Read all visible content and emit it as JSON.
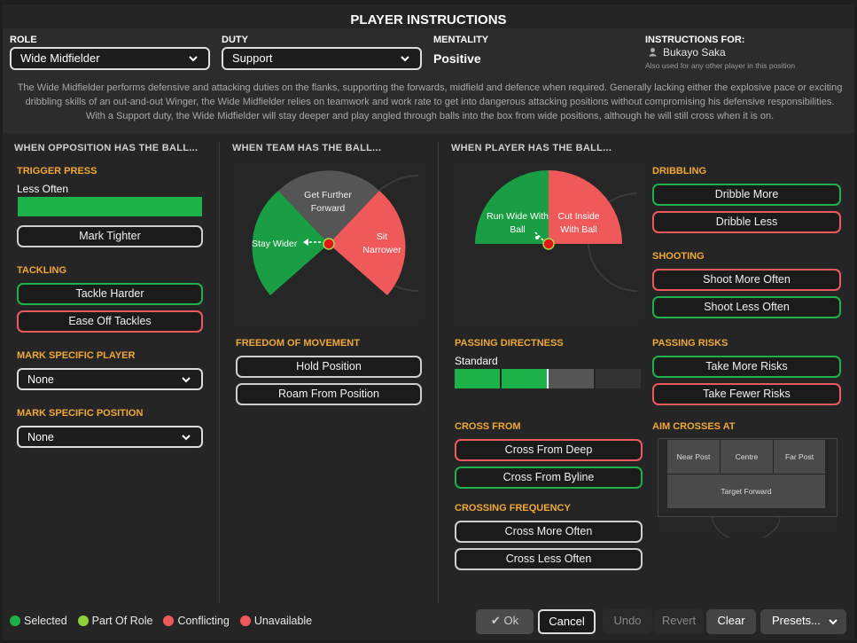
{
  "window": {
    "title": "PLAYER INSTRUCTIONS"
  },
  "role": {
    "label": "ROLE",
    "value": "Wide Midfielder"
  },
  "duty": {
    "label": "DUTY",
    "value": "Support"
  },
  "mentality": {
    "label": "MENTALITY",
    "value": "Positive"
  },
  "instructions_for": {
    "label": "INSTRUCTIONS FOR:",
    "player": "Bukayo Saka",
    "note": "Also used for any other player in this position"
  },
  "description": "The Wide Midfielder performs defensive and attacking duties on the flanks, supporting the forwards, midfield and defence when required. Generally lacking either the explosive pace or exciting dribbling skills of an out-and-out Winger, the Wide Midfielder relies on teamwork and work rate to get into dangerous attacking positions without compromising his defensive responsibilities. With a Support duty, the Wide Midfielder will stay deeper and play angled through balls into the box from wide positions, although he will still cross when it is on.",
  "opposition": {
    "heading": "WHEN OPPOSITION HAS THE BALL...",
    "trigger_press": {
      "label": "TRIGGER PRESS",
      "value": "Less Often"
    },
    "mark_tighter": "Mark Tighter",
    "tackling": {
      "label": "TACKLING",
      "harder": "Tackle Harder",
      "ease": "Ease Off Tackles"
    },
    "mark_player": {
      "label": "MARK SPECIFIC PLAYER",
      "value": "None"
    },
    "mark_position": {
      "label": "MARK SPECIFIC POSITION",
      "value": "None"
    }
  },
  "team_ball": {
    "heading": "WHEN TEAM HAS THE BALL...",
    "further_forward": "Get Further Forward",
    "stay_wider": "Stay Wider",
    "sit_narrower": "Sit Narrower",
    "freedom": {
      "label": "FREEDOM OF MOVEMENT",
      "hold": "Hold Position",
      "roam": "Roam From Position"
    }
  },
  "player_ball": {
    "heading": "WHEN PLAYER HAS THE BALL...",
    "run_wide": "Run Wide With Ball",
    "cut_inside": "Cut Inside With Ball",
    "dribbling": {
      "label": "DRIBBLING",
      "more": "Dribble More",
      "less": "Dribble Less"
    },
    "shooting": {
      "label": "SHOOTING",
      "more": "Shoot More Often",
      "less": "Shoot Less Often"
    },
    "passing_directness": {
      "label": "PASSING DIRECTNESS",
      "value": "Standard",
      "level_fraction": 0.5
    },
    "passing_risks": {
      "label": "PASSING RISKS",
      "more": "Take More Risks",
      "fewer": "Take Fewer Risks"
    },
    "cross_from": {
      "label": "CROSS FROM",
      "deep": "Cross From Deep",
      "byline": "Cross From Byline"
    },
    "aim_crosses": {
      "label": "AIM CROSSES AT",
      "near": "Near Post",
      "centre": "Centre",
      "far": "Far Post",
      "target": "Target Forward"
    },
    "crossing_frequency": {
      "label": "CROSSING FREQUENCY",
      "more": "Cross More Often",
      "less": "Cross Less Often"
    }
  },
  "legend": {
    "selected": "Selected",
    "part_of_role": "Part Of Role",
    "conflicting": "Conflicting",
    "unavailable": "Unavailable"
  },
  "footer": {
    "ok": "Ok",
    "cancel": "Cancel",
    "undo": "Undo",
    "revert": "Revert",
    "clear": "Clear",
    "presets": "Presets..."
  },
  "colors": {
    "selected": "#1db14a",
    "part_of_role": "#8fd13a",
    "conflicting": "#f0595a",
    "unavailable": "#f0595a",
    "accent": "#f0a838"
  }
}
